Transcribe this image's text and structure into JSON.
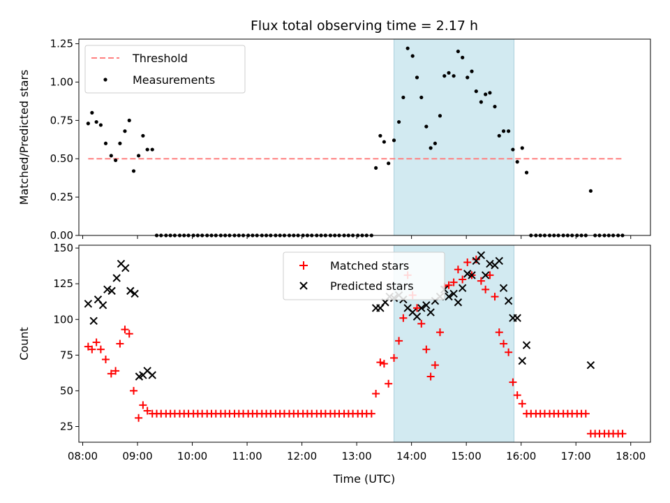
{
  "chart_data": {
    "type": "scatter",
    "title": "Flux total observing time = 2.17 h",
    "xlabel": "Time (UTC)",
    "x_ticks": [
      "08:00",
      "09:00",
      "10:00",
      "11:00",
      "12:00",
      "13:00",
      "14:00",
      "15:00",
      "16:00",
      "17:00",
      "18:00"
    ],
    "xlim_hours": [
      7.93,
      18.36
    ],
    "highlight_span_hours": [
      13.68,
      15.87
    ],
    "highlight_color": "#add8e6",
    "panels": [
      {
        "ylabel": "Matched/Predicted stars",
        "ylim": [
          0,
          1.28
        ],
        "yticks": [
          "0.00",
          "0.25",
          "0.50",
          "0.75",
          "1.00",
          "1.25"
        ],
        "ytick_values": [
          0,
          0.25,
          0.5,
          0.75,
          1.0,
          1.25
        ],
        "threshold": {
          "name": "Threshold",
          "value": 0.5,
          "x_range": [
            8.1,
            17.85
          ],
          "color": "#ff7f7f"
        },
        "series": [
          {
            "name": "Measurements",
            "color": "#000000",
            "marker": "dot",
            "x": [
              8.1,
              8.17,
              8.25,
              8.33,
              8.42,
              8.52,
              8.6,
              8.68,
              8.77,
              8.85,
              8.93,
              9.02,
              9.1,
              9.18,
              9.27,
              9.35,
              9.43,
              9.52,
              9.6,
              9.68,
              9.77,
              9.85,
              9.93,
              10.02,
              10.1,
              10.18,
              10.27,
              10.35,
              10.43,
              10.52,
              10.6,
              10.68,
              10.77,
              10.85,
              10.93,
              11.02,
              11.1,
              11.18,
              11.27,
              11.35,
              11.43,
              11.52,
              11.6,
              11.68,
              11.77,
              11.85,
              11.93,
              12.02,
              12.1,
              12.18,
              12.27,
              12.35,
              12.43,
              12.52,
              12.6,
              12.68,
              12.77,
              12.85,
              12.93,
              13.02,
              13.1,
              13.18,
              13.27,
              13.35,
              13.43,
              13.5,
              13.58,
              13.68,
              13.77,
              13.85,
              13.93,
              14.02,
              14.1,
              14.18,
              14.27,
              14.35,
              14.43,
              14.52,
              14.6,
              14.68,
              14.77,
              14.85,
              14.93,
              15.02,
              15.1,
              15.18,
              15.27,
              15.35,
              15.43,
              15.52,
              15.6,
              15.68,
              15.77,
              15.85,
              15.93,
              16.02,
              16.1,
              16.18,
              16.27,
              16.35,
              16.43,
              16.52,
              16.6,
              16.68,
              16.77,
              16.85,
              16.93,
              17.02,
              17.1,
              17.18,
              17.27,
              17.35,
              17.43,
              17.52,
              17.6,
              17.68,
              17.77,
              17.85
            ],
            "y": [
              0.73,
              0.8,
              0.74,
              0.72,
              0.6,
              0.52,
              0.49,
              0.6,
              0.68,
              0.75,
              0.42,
              0.52,
              0.65,
              0.56,
              0.56,
              0,
              0,
              0,
              0,
              0,
              0,
              0,
              0,
              0,
              0,
              0,
              0,
              0,
              0,
              0,
              0,
              0,
              0,
              0,
              0,
              0,
              0,
              0,
              0,
              0,
              0,
              0,
              0,
              0,
              0,
              0,
              0,
              0,
              0,
              0,
              0,
              0,
              0,
              0,
              0,
              0,
              0,
              0,
              0,
              0,
              0,
              0,
              0,
              0.44,
              0.65,
              0.61,
              0.47,
              0.62,
              0.74,
              0.9,
              1.22,
              1.17,
              1.03,
              0.9,
              0.71,
              0.57,
              0.6,
              0.78,
              1.04,
              1.06,
              1.04,
              1.2,
              1.16,
              1.03,
              1.07,
              0.94,
              0.87,
              0.92,
              0.93,
              0.84,
              0.65,
              0.68,
              0.68,
              0.56,
              0.48,
              0.57,
              0.41,
              0,
              0,
              0,
              0,
              0,
              0,
              0,
              0,
              0,
              0,
              0,
              0,
              0,
              0.29,
              0,
              0,
              0,
              0,
              0,
              0,
              0
            ]
          }
        ]
      },
      {
        "ylabel": "Count",
        "ylim": [
          14,
          152
        ],
        "yticks": [
          "25",
          "50",
          "75",
          "100",
          "125",
          "150"
        ],
        "ytick_values": [
          25,
          50,
          75,
          100,
          125,
          150
        ],
        "series": [
          {
            "name": "Matched stars",
            "color": "#ff0000",
            "marker": "plus",
            "x": [
              8.1,
              8.17,
              8.25,
              8.33,
              8.42,
              8.52,
              8.6,
              8.68,
              8.77,
              8.85,
              8.93,
              9.02,
              9.1,
              9.18,
              9.27,
              9.35,
              9.43,
              9.52,
              9.6,
              9.68,
              9.77,
              9.85,
              9.93,
              10.02,
              10.1,
              10.18,
              10.27,
              10.35,
              10.43,
              10.52,
              10.6,
              10.68,
              10.77,
              10.85,
              10.93,
              11.02,
              11.1,
              11.18,
              11.27,
              11.35,
              11.43,
              11.52,
              11.6,
              11.68,
              11.77,
              11.85,
              11.93,
              12.02,
              12.1,
              12.18,
              12.27,
              12.35,
              12.43,
              12.52,
              12.6,
              12.68,
              12.77,
              12.85,
              12.93,
              13.02,
              13.1,
              13.18,
              13.27,
              13.35,
              13.43,
              13.5,
              13.58,
              13.68,
              13.77,
              13.85,
              13.93,
              14.02,
              14.1,
              14.18,
              14.27,
              14.35,
              14.43,
              14.52,
              14.6,
              14.68,
              14.77,
              14.85,
              14.93,
              15.02,
              15.1,
              15.18,
              15.27,
              15.35,
              15.43,
              15.52,
              15.6,
              15.68,
              15.77,
              15.85,
              15.93,
              16.02,
              16.1,
              16.18,
              16.27,
              16.35,
              16.43,
              16.52,
              16.6,
              16.68,
              16.77,
              16.85,
              16.93,
              17.02,
              17.1,
              17.18,
              17.27,
              17.35,
              17.43,
              17.52,
              17.6,
              17.68,
              17.77,
              17.85
            ],
            "y": [
              81,
              79,
              84,
              79,
              72,
              62,
              64,
              83,
              93,
              90,
              50,
              31,
              40,
              36,
              34,
              34,
              34,
              34,
              34,
              34,
              34,
              34,
              34,
              34,
              34,
              34,
              34,
              34,
              34,
              34,
              34,
              34,
              34,
              34,
              34,
              34,
              34,
              34,
              34,
              34,
              34,
              34,
              34,
              34,
              34,
              34,
              34,
              34,
              34,
              34,
              34,
              34,
              34,
              34,
              34,
              34,
              34,
              34,
              34,
              34,
              34,
              34,
              34,
              48,
              70,
              69,
              55,
              73,
              85,
              101,
              131,
              117,
              108,
              97,
              79,
              60,
              68,
              91,
              123,
              124,
              126,
              135,
              128,
              140,
              131,
              142,
              127,
              121,
              131,
              116,
              91,
              83,
              77,
              56,
              47,
              41,
              34,
              34,
              34,
              34,
              34,
              34,
              34,
              34,
              34,
              34,
              34,
              34,
              34,
              34,
              20,
              20,
              20,
              20,
              20,
              20,
              20,
              20
            ]
          },
          {
            "name": "Predicted stars",
            "color": "#000000",
            "marker": "cross",
            "x": [
              8.1,
              8.2,
              8.28,
              8.37,
              8.45,
              8.53,
              8.62,
              8.7,
              8.78,
              8.87,
              8.95,
              9.03,
              9.1,
              9.18,
              9.27,
              13.35,
              13.43,
              13.52,
              13.6,
              13.68,
              13.77,
              13.85,
              13.93,
              14.02,
              14.1,
              14.18,
              14.27,
              14.35,
              14.43,
              14.52,
              14.6,
              14.68,
              14.77,
              14.85,
              14.93,
              15.02,
              15.1,
              15.18,
              15.27,
              15.35,
              15.43,
              15.52,
              15.6,
              15.68,
              15.77,
              15.85,
              15.93,
              16.02,
              16.1,
              17.27
            ],
            "y": [
              111,
              99,
              114,
              110,
              121,
              120,
              129,
              139,
              136,
              120,
              118,
              60,
              61,
              64,
              61,
              108,
              108,
              112,
              116,
              115,
              117,
              114,
              108,
              105,
              102,
              108,
              110,
              105,
              113,
              116,
              121,
              116,
              118,
              112,
              122,
              132,
              131,
              141,
              145,
              131,
              139,
              138,
              141,
              122,
              113,
              101,
              101,
              71,
              82,
              68
            ]
          }
        ]
      }
    ],
    "legend_placement": "top-left (upper panel), top-center (lower panel)"
  }
}
